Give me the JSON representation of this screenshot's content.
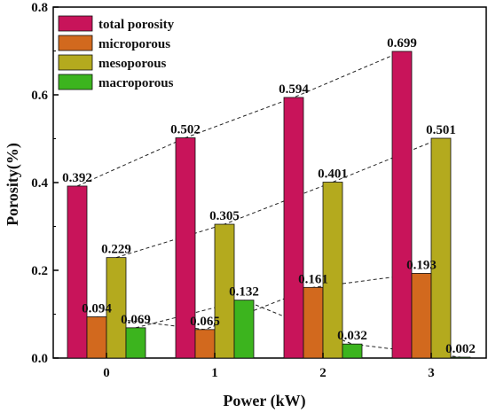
{
  "chart_data": {
    "type": "bar",
    "categories": [
      "0",
      "1",
      "2",
      "3"
    ],
    "series": [
      {
        "name": "total porosity",
        "values": [
          0.392,
          0.502,
          0.594,
          0.699
        ],
        "color": "#C8145A",
        "labels": [
          "0.392",
          "0.502",
          "0.594",
          "0.699"
        ]
      },
      {
        "name": "microporous",
        "values": [
          0.094,
          0.065,
          0.161,
          0.193
        ],
        "color": "#D2691E",
        "labels": [
          "0.094",
          "0.065",
          "0.161",
          "0.193"
        ]
      },
      {
        "name": "mesoporous",
        "values": [
          0.229,
          0.305,
          0.401,
          0.501
        ],
        "color": "#B4AA1E",
        "labels": [
          "0.229",
          "0.305",
          "0.401",
          "0.501"
        ]
      },
      {
        "name": "macroporous",
        "values": [
          0.069,
          0.132,
          0.032,
          0.002
        ],
        "color": "#3CB41E",
        "labels": [
          "0.069",
          "0.132",
          "0.032",
          "0.002"
        ]
      }
    ],
    "xlabel": "Power (kW)",
    "ylabel": "Porosity(%)",
    "ylim": [
      0,
      0.8
    ],
    "yticks": [
      "0.0",
      "0.2",
      "0.4",
      "0.6",
      "0.8"
    ],
    "grid": false,
    "legend_position": "top-left",
    "trend_lines": "dashed"
  }
}
